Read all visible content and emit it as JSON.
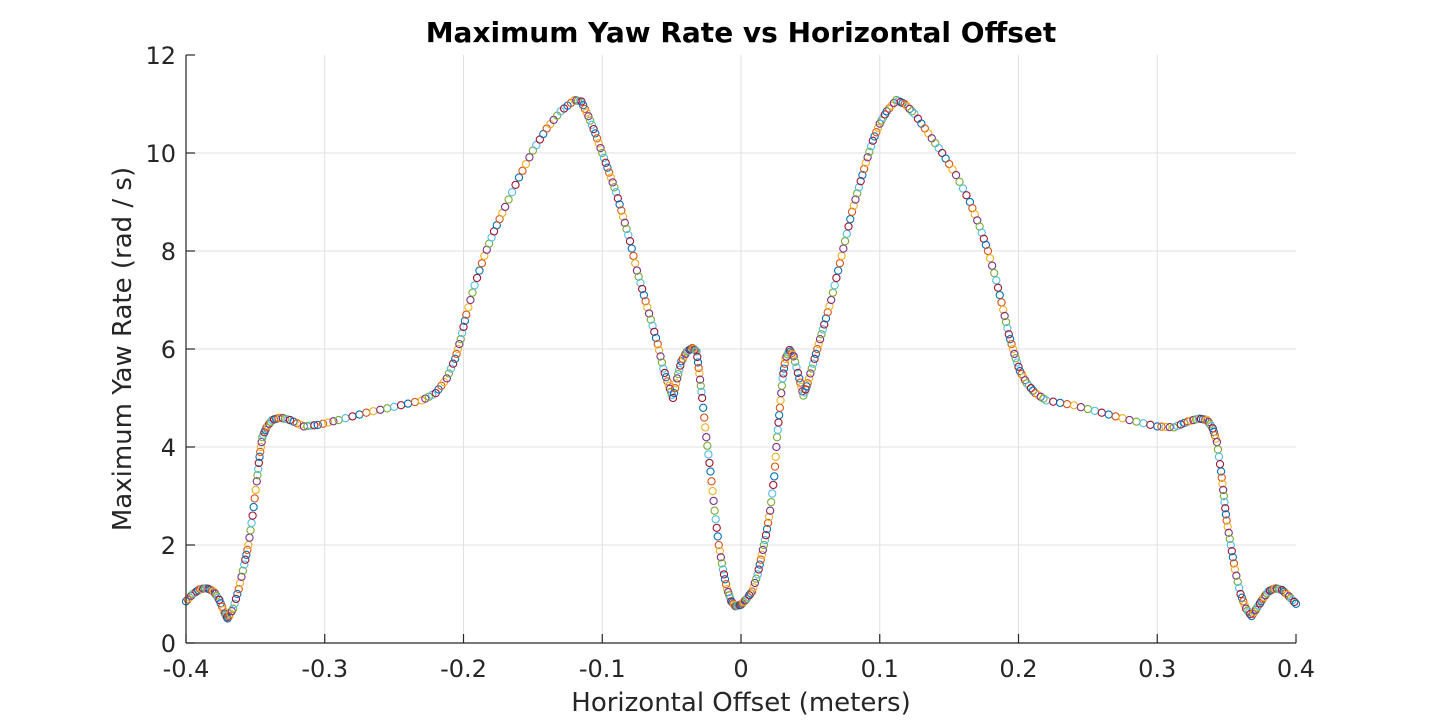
{
  "chart_data": {
    "type": "scatter",
    "title": "Maximum Yaw Rate vs Horizontal Offset",
    "xlabel": "Horizontal Offset (meters)",
    "ylabel": "Maximum Yaw Rate (rad / s)",
    "xlim": [
      -0.4,
      0.4
    ],
    "ylim": [
      0,
      12
    ],
    "xticks": [
      -0.4,
      -0.3,
      -0.2,
      -0.1,
      0,
      0.1,
      0.2,
      0.3,
      0.4
    ],
    "xtick_labels": [
      "-0.4",
      "-0.3",
      "-0.2",
      "-0.1",
      "0",
      "0.1",
      "0.2",
      "0.3",
      "0.4"
    ],
    "yticks": [
      0,
      2,
      4,
      6,
      8,
      10,
      12
    ],
    "ytick_labels": [
      "0",
      "2",
      "4",
      "6",
      "8",
      "10",
      "12"
    ],
    "grid": true,
    "marker": "open-circle",
    "colors": [
      "#0072BD",
      "#D95319",
      "#EDB120",
      "#7E2F8E",
      "#77AC30",
      "#4DBEEE",
      "#A2142F"
    ],
    "curve": [
      [
        -0.4,
        0.85
      ],
      [
        -0.395,
        1.0
      ],
      [
        -0.39,
        1.1
      ],
      [
        -0.385,
        1.12
      ],
      [
        -0.38,
        1.05
      ],
      [
        -0.376,
        0.88
      ],
      [
        -0.372,
        0.6
      ],
      [
        -0.37,
        0.5
      ],
      [
        -0.366,
        0.7
      ],
      [
        -0.362,
        1.1
      ],
      [
        -0.358,
        1.6
      ],
      [
        -0.355,
        2.0
      ],
      [
        -0.352,
        2.6
      ],
      [
        -0.349,
        3.3
      ],
      [
        -0.347,
        3.8
      ],
      [
        -0.345,
        4.2
      ],
      [
        -0.342,
        4.4
      ],
      [
        -0.338,
        4.55
      ],
      [
        -0.332,
        4.6
      ],
      [
        -0.325,
        4.55
      ],
      [
        -0.315,
        4.42
      ],
      [
        -0.305,
        4.45
      ],
      [
        -0.29,
        4.55
      ],
      [
        -0.27,
        4.7
      ],
      [
        -0.25,
        4.82
      ],
      [
        -0.23,
        4.95
      ],
      [
        -0.22,
        5.1
      ],
      [
        -0.212,
        5.4
      ],
      [
        -0.206,
        5.8
      ],
      [
        -0.202,
        6.2
      ],
      [
        -0.198,
        6.7
      ],
      [
        -0.192,
        7.3
      ],
      [
        -0.185,
        7.9
      ],
      [
        -0.178,
        8.4
      ],
      [
        -0.17,
        8.9
      ],
      [
        -0.16,
        9.5
      ],
      [
        -0.15,
        10.05
      ],
      [
        -0.14,
        10.5
      ],
      [
        -0.13,
        10.85
      ],
      [
        -0.12,
        11.08
      ],
      [
        -0.115,
        11.05
      ],
      [
        -0.11,
        10.75
      ],
      [
        -0.105,
        10.4
      ],
      [
        -0.1,
        10.0
      ],
      [
        -0.095,
        9.6
      ],
      [
        -0.09,
        9.2
      ],
      [
        -0.085,
        8.7
      ],
      [
        -0.08,
        8.2
      ],
      [
        -0.075,
        7.6
      ],
      [
        -0.07,
        7.1
      ],
      [
        -0.065,
        6.6
      ],
      [
        -0.06,
        6.1
      ],
      [
        -0.056,
        5.6
      ],
      [
        -0.052,
        5.25
      ],
      [
        -0.049,
        5.0
      ],
      [
        -0.046,
        5.4
      ],
      [
        -0.043,
        5.75
      ],
      [
        -0.039,
        5.95
      ],
      [
        -0.035,
        6.02
      ],
      [
        -0.032,
        5.95
      ],
      [
        -0.03,
        5.5
      ],
      [
        -0.028,
        5.0
      ],
      [
        -0.025,
        4.2
      ],
      [
        -0.022,
        3.5
      ],
      [
        -0.019,
        2.7
      ],
      [
        -0.016,
        2.0
      ],
      [
        -0.013,
        1.5
      ],
      [
        -0.01,
        1.1
      ],
      [
        -0.007,
        0.85
      ],
      [
        -0.004,
        0.75
      ],
      [
        0.0,
        0.78
      ],
      [
        0.004,
        0.9
      ],
      [
        0.008,
        1.05
      ],
      [
        0.012,
        1.4
      ],
      [
        0.015,
        1.8
      ],
      [
        0.018,
        2.2
      ],
      [
        0.021,
        2.7
      ],
      [
        0.024,
        3.4
      ],
      [
        0.026,
        4.2
      ],
      [
        0.028,
        4.8
      ],
      [
        0.03,
        5.4
      ],
      [
        0.032,
        5.8
      ],
      [
        0.035,
        5.98
      ],
      [
        0.038,
        5.85
      ],
      [
        0.042,
        5.4
      ],
      [
        0.045,
        5.05
      ],
      [
        0.048,
        5.3
      ],
      [
        0.052,
        5.7
      ],
      [
        0.056,
        6.1
      ],
      [
        0.06,
        6.5
      ],
      [
        0.065,
        7.0
      ],
      [
        0.07,
        7.6
      ],
      [
        0.075,
        8.2
      ],
      [
        0.08,
        8.8
      ],
      [
        0.085,
        9.3
      ],
      [
        0.09,
        9.8
      ],
      [
        0.095,
        10.25
      ],
      [
        0.1,
        10.6
      ],
      [
        0.105,
        10.85
      ],
      [
        0.112,
        11.08
      ],
      [
        0.118,
        11.0
      ],
      [
        0.125,
        10.8
      ],
      [
        0.135,
        10.4
      ],
      [
        0.145,
        10.0
      ],
      [
        0.155,
        9.55
      ],
      [
        0.165,
        9.0
      ],
      [
        0.172,
        8.5
      ],
      [
        0.178,
        8.0
      ],
      [
        0.184,
        7.4
      ],
      [
        0.189,
        6.8
      ],
      [
        0.193,
        6.3
      ],
      [
        0.197,
        5.9
      ],
      [
        0.201,
        5.55
      ],
      [
        0.206,
        5.3
      ],
      [
        0.212,
        5.1
      ],
      [
        0.22,
        4.95
      ],
      [
        0.24,
        4.85
      ],
      [
        0.26,
        4.7
      ],
      [
        0.28,
        4.55
      ],
      [
        0.3,
        4.42
      ],
      [
        0.312,
        4.4
      ],
      [
        0.322,
        4.52
      ],
      [
        0.33,
        4.58
      ],
      [
        0.336,
        4.55
      ],
      [
        0.34,
        4.38
      ],
      [
        0.343,
        4.1
      ],
      [
        0.346,
        3.5
      ],
      [
        0.348,
        3.0
      ],
      [
        0.35,
        2.5
      ],
      [
        0.353,
        2.0
      ],
      [
        0.356,
        1.5
      ],
      [
        0.36,
        1.0
      ],
      [
        0.364,
        0.7
      ],
      [
        0.368,
        0.55
      ],
      [
        0.372,
        0.72
      ],
      [
        0.376,
        0.9
      ],
      [
        0.38,
        1.05
      ],
      [
        0.385,
        1.12
      ],
      [
        0.39,
        1.08
      ],
      [
        0.395,
        0.95
      ],
      [
        0.4,
        0.8
      ]
    ],
    "points_per_segment": 4
  }
}
